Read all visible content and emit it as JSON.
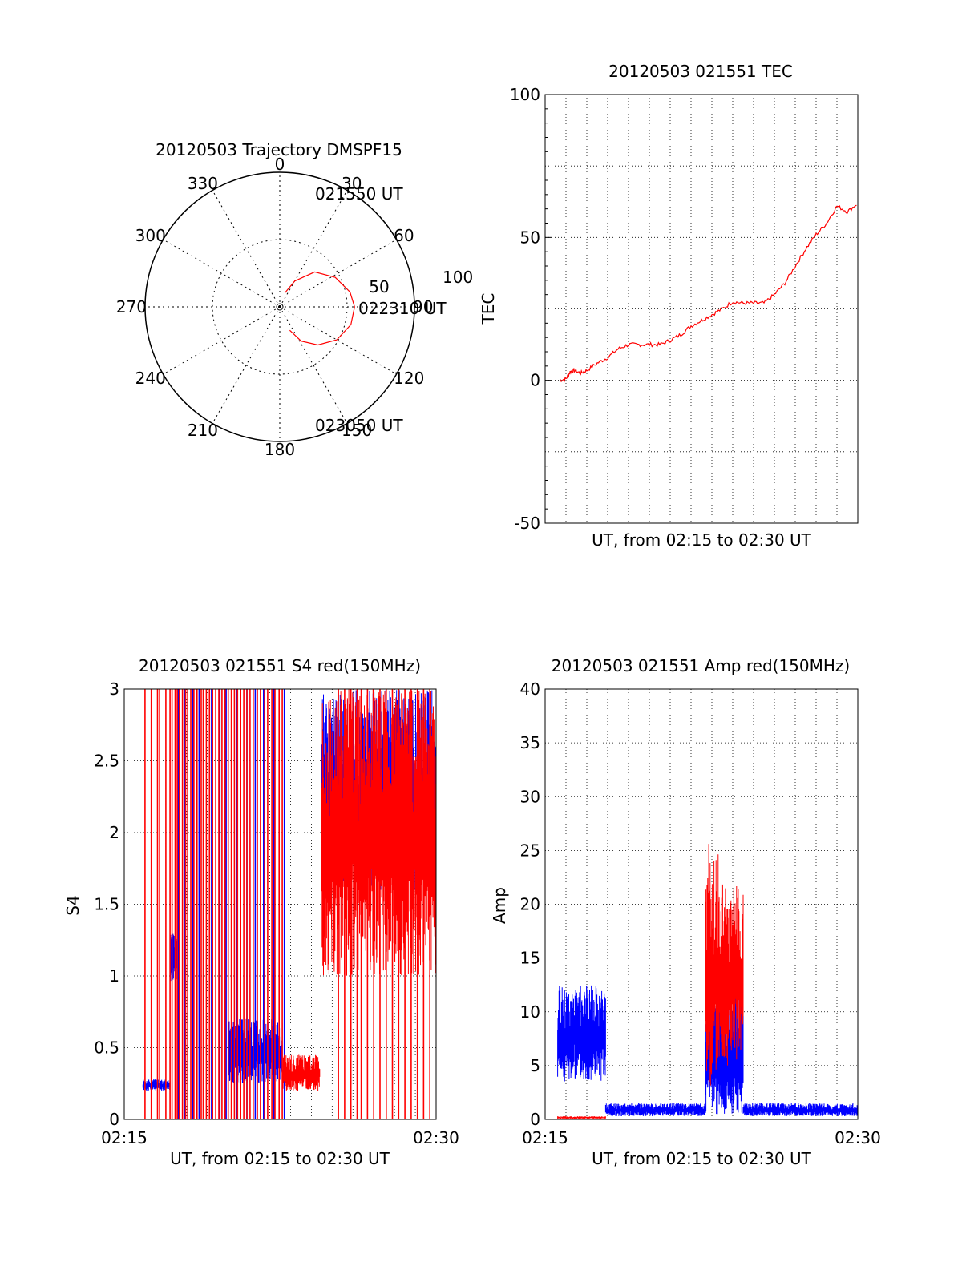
{
  "chart_data": [
    {
      "type": "polar",
      "title": "20120503 Trajectory DMSPF15",
      "azimuth_labels": [
        "0",
        "30",
        "60",
        "90",
        "120",
        "150",
        "180",
        "210",
        "240",
        "270",
        "300",
        "330"
      ],
      "radial_labels": [
        "50",
        "100"
      ],
      "track_color": "#ff0000",
      "start_label": "021550 UT",
      "mid_label": "022310 UT",
      "end_label": "023050 UT",
      "track": [
        {
          "az": 20,
          "el": 80
        },
        {
          "az": 30,
          "el": 70
        },
        {
          "az": 45,
          "el": 57
        },
        {
          "az": 62,
          "el": 48
        },
        {
          "az": 78,
          "el": 42
        },
        {
          "az": 90,
          "el": 40
        },
        {
          "az": 104,
          "el": 41
        },
        {
          "az": 120,
          "el": 46
        },
        {
          "az": 135,
          "el": 54
        },
        {
          "az": 148,
          "el": 63
        },
        {
          "az": 157,
          "el": 73
        }
      ]
    },
    {
      "type": "line",
      "title": "20120503 021551 TEC",
      "xlabel": "UT, from 02:15 to 02:30 UT",
      "ylabel": "TEC",
      "ylim": [
        -50,
        100
      ],
      "yticks": [
        "100",
        "50",
        "0",
        "-50"
      ],
      "grid": true,
      "series": [
        {
          "color": "#ff0000",
          "x_minutes": [
            0.7,
            1.0,
            1.2,
            1.4,
            1.7,
            2.0,
            2.5,
            3.0,
            3.5,
            4.0,
            4.5,
            5.0,
            5.5,
            6.0,
            6.5,
            7.0,
            7.5,
            8.0,
            8.5,
            9.0,
            9.5,
            10.0,
            10.5,
            11.0,
            11.5,
            12.0,
            12.5,
            13.0,
            13.5,
            14.0,
            14.5,
            15.0
          ],
          "values": [
            0,
            0.5,
            3,
            3.5,
            2.5,
            3.5,
            6,
            8,
            11,
            12.5,
            12.5,
            12.5,
            12.5,
            14,
            16,
            19,
            21,
            23,
            25,
            27.5,
            27,
            27,
            27,
            30,
            34,
            40,
            46,
            51,
            55,
            61,
            59,
            62
          ]
        }
      ]
    },
    {
      "type": "scintillation",
      "title": "20120503 021551 S4 red(150MHz)",
      "xlabel": "UT, from 02:15 to 02:30 UT",
      "ylabel": "S4",
      "xticks": [
        "02:15",
        "02:30"
      ],
      "ylim": [
        0,
        3
      ],
      "yticks": [
        "0",
        "0.5",
        "1",
        "1.5",
        "2",
        "2.5",
        "3"
      ],
      "grid": true,
      "series": [
        {
          "color": "#0000ff",
          "segments": [
            {
              "x_start": 0.9,
              "x_end": 2.2,
              "low": 0.2,
              "high": 0.28
            },
            {
              "x_start": 2.2,
              "x_end": 2.55,
              "low": 0.95,
              "high": 1.3
            },
            {
              "x_start": 5.0,
              "x_end": 7.6,
              "low": 0.25,
              "high": 0.7
            },
            {
              "x_start": 9.5,
              "x_end": 15.0,
              "low": 1.6,
              "high": 3.0
            }
          ],
          "spike_times": [
            2.6,
            2.9,
            3.3,
            3.6,
            4.2,
            4.6,
            4.9,
            5.4,
            5.9,
            6.3,
            6.7,
            7.2,
            7.7
          ]
        },
        {
          "color": "#ff0000",
          "segments": [
            {
              "x_start": 7.6,
              "x_end": 9.4,
              "low": 0.2,
              "high": 0.45
            },
            {
              "x_start": 9.5,
              "x_end": 15.0,
              "low": 1.0,
              "high": 3.0
            }
          ],
          "spike_times": [
            1.0,
            1.3,
            1.6,
            1.7,
            2.0,
            2.2,
            2.3,
            2.45,
            2.55,
            2.65,
            2.8,
            2.95,
            3.05,
            3.2,
            3.35,
            3.5,
            3.7,
            3.8,
            3.95,
            4.1,
            4.25,
            4.4,
            4.55,
            4.7,
            4.85,
            5.0,
            5.15,
            5.3,
            5.45,
            5.6,
            5.75,
            5.9,
            6.05,
            6.2,
            6.4,
            6.55,
            6.75,
            6.9,
            7.1,
            7.25,
            7.45,
            7.6,
            10.3,
            10.6,
            10.9,
            11.2,
            11.4,
            11.7,
            12.0,
            12.3,
            12.6,
            12.9,
            13.2,
            13.5,
            13.8,
            14.1,
            14.4,
            14.7
          ]
        }
      ]
    },
    {
      "type": "scintillation",
      "title": "20120503 021551 Amp red(150MHz)",
      "xlabel": "UT, from 02:15 to 02:30 UT",
      "ylabel": "Amp",
      "xticks": [
        "02:15",
        "02:30"
      ],
      "ylim": [
        0,
        40
      ],
      "yticks": [
        "0",
        "5",
        "10",
        "15",
        "20",
        "25",
        "30",
        "35",
        "40"
      ],
      "grid": true,
      "series": [
        {
          "color": "#0000ff",
          "segments": [
            {
              "x_start": 0.6,
              "x_end": 2.9,
              "low": 3.5,
              "high": 12.5
            },
            {
              "x_start": 2.9,
              "x_end": 7.7,
              "low": 0.3,
              "high": 1.5
            },
            {
              "x_start": 7.7,
              "x_end": 9.5,
              "low": 0.5,
              "high": 12
            },
            {
              "x_start": 9.5,
              "x_end": 15.0,
              "low": 0.3,
              "high": 1.5
            }
          ],
          "spike_times": []
        },
        {
          "color": "#ff0000",
          "segments": [
            {
              "x_start": 0.6,
              "x_end": 2.9,
              "low": 0.05,
              "high": 0.3
            },
            {
              "x_start": 7.7,
              "x_end": 8.3,
              "low": 3,
              "high": 26
            },
            {
              "x_start": 8.3,
              "x_end": 9.5,
              "low": 5,
              "high": 22
            }
          ],
          "spike_times": []
        }
      ]
    }
  ]
}
